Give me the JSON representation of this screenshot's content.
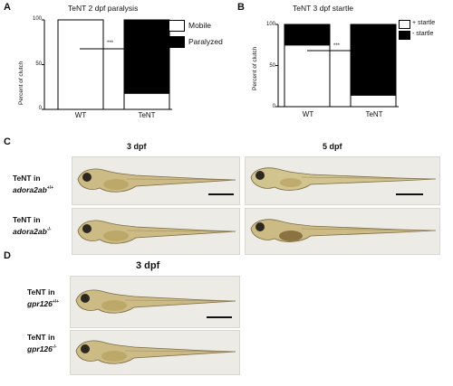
{
  "panels": {
    "A": {
      "letter": "A",
      "title": "TeNT 2 dpf paralysis",
      "ylabel": "Percent of clutch",
      "stars": "***",
      "yticks": [
        "100",
        "50",
        "0"
      ],
      "legend": [
        "Mobile",
        "Paralyzed"
      ]
    },
    "B": {
      "letter": "B",
      "title": "TeNT 3 dpf startle",
      "ylabel": "Percent of clutch",
      "stars": "***",
      "yticks": [
        "100",
        "50",
        "0"
      ],
      "legend": [
        "+ startle",
        "- startle"
      ]
    },
    "C": {
      "letter": "C",
      "day1": "3 dpf",
      "day2": "5 dpf",
      "row1": {
        "line1": "TeNT in",
        "gene": "adora2ab",
        "sup": "+/+"
      },
      "row2": {
        "line1": "TeNT in",
        "gene": "adora2ab",
        "sup": "-/-"
      }
    },
    "D": {
      "letter": "D",
      "day1": "3 dpf",
      "row1": {
        "line1": "TeNT in",
        "gene": "gpr126",
        "sup": "+/+"
      },
      "row2": {
        "line1": "TeNT in",
        "gene": "gpr126",
        "sup": "-/-"
      }
    }
  },
  "chart_data": [
    {
      "type": "bar",
      "title": "TeNT 2 dpf paralysis",
      "ylabel": "Percent of clutch",
      "categories": [
        "WT",
        "TeNT"
      ],
      "ylim": [
        0,
        100
      ],
      "stacked": true,
      "series": [
        {
          "name": "Mobile",
          "color": "#ffffff",
          "values": [
            100,
            18
          ]
        },
        {
          "name": "Paralyzed",
          "color": "#000000",
          "values": [
            0,
            82
          ]
        }
      ],
      "annotation": "***"
    },
    {
      "type": "bar",
      "title": "TeNT 3 dpf startle",
      "ylabel": "Percent of clutch",
      "categories": [
        "WT",
        "TeNT"
      ],
      "ylim": [
        0,
        100
      ],
      "stacked": true,
      "series": [
        {
          "name": "+ startle",
          "color": "#ffffff",
          "values": [
            75,
            14
          ]
        },
        {
          "name": "- startle",
          "color": "#000000",
          "values": [
            25,
            86
          ]
        }
      ],
      "annotation": "***"
    }
  ]
}
